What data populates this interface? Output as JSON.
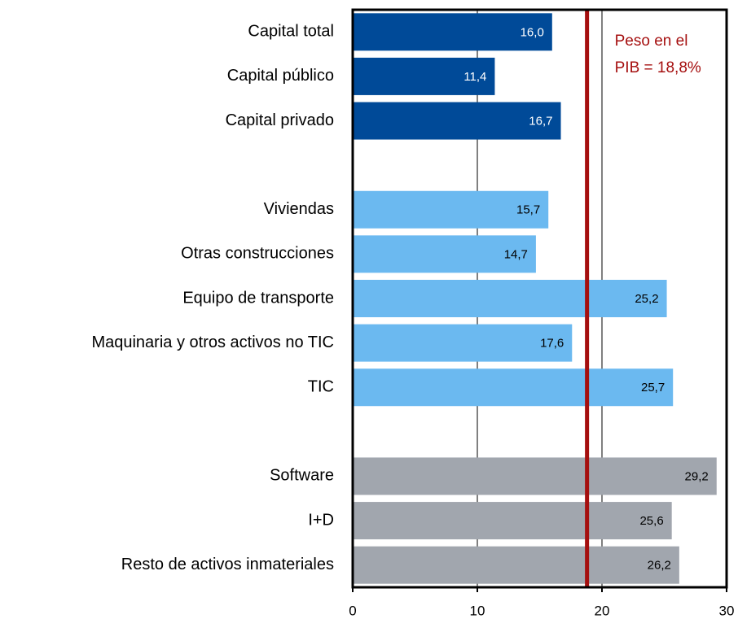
{
  "chart_data": {
    "type": "hbar",
    "categories": [
      "Capital total",
      "Capital público",
      "Capital privado",
      null,
      "Viviendas",
      "Otras construcciones",
      "Equipo de transporte",
      "Maquinaria y otros activos no TIC",
      "TIC",
      null,
      "Software",
      "I+D",
      "Resto de activos inmateriales"
    ],
    "values": [
      16.0,
      11.4,
      16.7,
      null,
      15.7,
      14.7,
      25.2,
      17.6,
      25.7,
      null,
      29.2,
      25.6,
      26.2
    ],
    "value_labels": [
      "16,0",
      "11,4",
      "16,7",
      null,
      "15,7",
      "14,7",
      "25,2",
      "17,6",
      "25,7",
      null,
      "29,2",
      "25,6",
      "26,2"
    ],
    "colors": [
      "#004a98",
      "#004a98",
      "#004a98",
      null,
      "#6bb9f0",
      "#6bb9f0",
      "#6bb9f0",
      "#6bb9f0",
      "#6bb9f0",
      null,
      "#a1a6ae",
      "#a1a6ae",
      "#a1a6ae"
    ],
    "value_label_colors": [
      "#ffffff",
      "#ffffff",
      "#ffffff",
      null,
      "#000000",
      "#000000",
      "#000000",
      "#000000",
      "#000000",
      null,
      "#000000",
      "#000000",
      "#000000"
    ],
    "xlim": [
      0,
      30
    ],
    "xticks": [
      0,
      10,
      20,
      30
    ],
    "grid": true,
    "reference_line": {
      "value": 18.8,
      "color": "#a50f0f",
      "label": [
        "Peso en el",
        "PIB = 18,8%"
      ]
    }
  }
}
